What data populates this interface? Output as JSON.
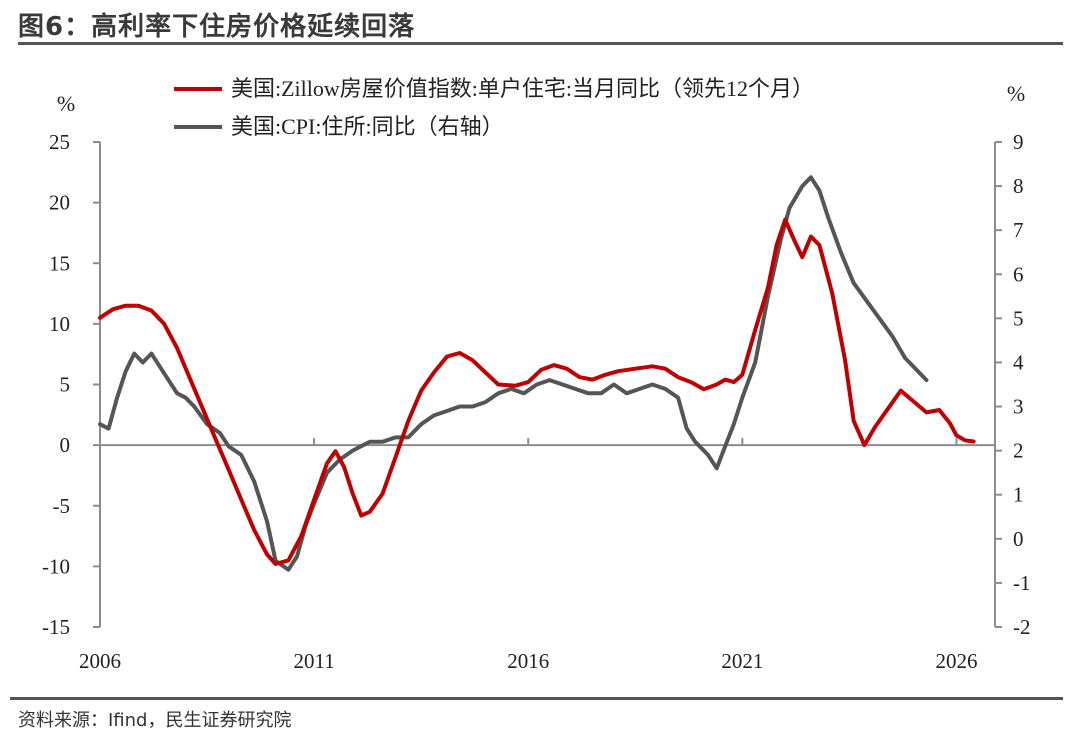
{
  "figure": {
    "title": "图6：高利率下住房价格延续回落",
    "source": "资料来源：Ifind，民生证券研究院"
  },
  "chart_data": {
    "type": "line",
    "left_unit": "%",
    "right_unit": "%",
    "x_ticks": [
      "2006",
      "2011",
      "2016",
      "2021",
      "2026"
    ],
    "xlim": [
      2006,
      2026.9
    ],
    "ylim_left": [
      -15,
      25
    ],
    "yticks_left": [
      25,
      20,
      15,
      10,
      5,
      0,
      -5,
      -10,
      -15
    ],
    "ylim_right": [
      -2,
      9
    ],
    "yticks_right": [
      9,
      8,
      7,
      6,
      5,
      4,
      3,
      2,
      1,
      0,
      -1,
      -2
    ],
    "legend_position": "top",
    "grid": false,
    "series": [
      {
        "name": "美国:Zillow房屋价值指数:单户住宅:当月同比（领先12个月）",
        "axis": "left",
        "color": "#c00000",
        "points": [
          [
            2006.0,
            10.5
          ],
          [
            2006.3,
            11.2
          ],
          [
            2006.6,
            11.5
          ],
          [
            2006.9,
            11.5
          ],
          [
            2007.2,
            11.1
          ],
          [
            2007.5,
            10.0
          ],
          [
            2007.8,
            8.0
          ],
          [
            2008.1,
            5.5
          ],
          [
            2008.4,
            3.0
          ],
          [
            2008.7,
            0.5
          ],
          [
            2009.0,
            -2.0
          ],
          [
            2009.3,
            -4.5
          ],
          [
            2009.6,
            -7.0
          ],
          [
            2009.9,
            -9.0
          ],
          [
            2010.1,
            -9.8
          ],
          [
            2010.4,
            -9.5
          ],
          [
            2010.7,
            -7.5
          ],
          [
            2011.0,
            -4.5
          ],
          [
            2011.3,
            -1.5
          ],
          [
            2011.5,
            -0.5
          ],
          [
            2011.7,
            -1.8
          ],
          [
            2011.9,
            -4.0
          ],
          [
            2012.1,
            -5.8
          ],
          [
            2012.3,
            -5.5
          ],
          [
            2012.6,
            -4.0
          ],
          [
            2012.9,
            -1.0
          ],
          [
            2013.2,
            2.0
          ],
          [
            2013.5,
            4.5
          ],
          [
            2013.8,
            6.0
          ],
          [
            2014.1,
            7.3
          ],
          [
            2014.4,
            7.6
          ],
          [
            2014.7,
            7.0
          ],
          [
            2015.0,
            6.0
          ],
          [
            2015.3,
            5.0
          ],
          [
            2015.7,
            4.9
          ],
          [
            2016.0,
            5.2
          ],
          [
            2016.3,
            6.2
          ],
          [
            2016.6,
            6.6
          ],
          [
            2016.9,
            6.3
          ],
          [
            2017.2,
            5.6
          ],
          [
            2017.5,
            5.4
          ],
          [
            2017.8,
            5.8
          ],
          [
            2018.1,
            6.1
          ],
          [
            2018.5,
            6.3
          ],
          [
            2018.9,
            6.5
          ],
          [
            2019.2,
            6.3
          ],
          [
            2019.5,
            5.6
          ],
          [
            2019.8,
            5.2
          ],
          [
            2020.1,
            4.6
          ],
          [
            2020.4,
            5.0
          ],
          [
            2020.6,
            5.4
          ],
          [
            2020.8,
            5.2
          ],
          [
            2021.0,
            5.8
          ],
          [
            2021.3,
            9.5
          ],
          [
            2021.6,
            13.0
          ],
          [
            2021.8,
            16.5
          ],
          [
            2022.0,
            18.6
          ],
          [
            2022.2,
            17.0
          ],
          [
            2022.4,
            15.5
          ],
          [
            2022.6,
            17.2
          ],
          [
            2022.8,
            16.5
          ],
          [
            2023.1,
            12.5
          ],
          [
            2023.4,
            7.0
          ],
          [
            2023.6,
            2.0
          ],
          [
            2023.85,
            0.0
          ],
          [
            2024.1,
            1.5
          ],
          [
            2024.4,
            3.0
          ],
          [
            2024.7,
            4.5
          ],
          [
            2025.0,
            3.6
          ],
          [
            2025.3,
            2.7
          ],
          [
            2025.6,
            2.9
          ],
          [
            2025.85,
            1.8
          ],
          [
            2026.0,
            0.8
          ],
          [
            2026.2,
            0.4
          ],
          [
            2026.4,
            0.3
          ]
        ]
      },
      {
        "name": "美国:CPI:住所:同比（右轴）",
        "axis": "right",
        "color": "#555555",
        "points": [
          [
            2006.0,
            2.6
          ],
          [
            2006.2,
            2.5
          ],
          [
            2006.4,
            3.2
          ],
          [
            2006.6,
            3.8
          ],
          [
            2006.8,
            4.2
          ],
          [
            2007.0,
            4.0
          ],
          [
            2007.2,
            4.2
          ],
          [
            2007.4,
            3.9
          ],
          [
            2007.6,
            3.6
          ],
          [
            2007.8,
            3.3
          ],
          [
            2008.0,
            3.2
          ],
          [
            2008.2,
            3.0
          ],
          [
            2008.5,
            2.6
          ],
          [
            2008.8,
            2.4
          ],
          [
            2009.0,
            2.1
          ],
          [
            2009.3,
            1.9
          ],
          [
            2009.6,
            1.3
          ],
          [
            2009.9,
            0.4
          ],
          [
            2010.1,
            -0.5
          ],
          [
            2010.4,
            -0.7
          ],
          [
            2010.6,
            -0.4
          ],
          [
            2010.8,
            0.3
          ],
          [
            2011.0,
            0.8
          ],
          [
            2011.3,
            1.5
          ],
          [
            2011.6,
            1.8
          ],
          [
            2011.9,
            2.0
          ],
          [
            2012.1,
            2.1
          ],
          [
            2012.3,
            2.2
          ],
          [
            2012.6,
            2.2
          ],
          [
            2012.9,
            2.3
          ],
          [
            2013.2,
            2.3
          ],
          [
            2013.5,
            2.6
          ],
          [
            2013.8,
            2.8
          ],
          [
            2014.1,
            2.9
          ],
          [
            2014.4,
            3.0
          ],
          [
            2014.7,
            3.0
          ],
          [
            2015.0,
            3.1
          ],
          [
            2015.3,
            3.3
          ],
          [
            2015.6,
            3.4
          ],
          [
            2015.9,
            3.3
          ],
          [
            2016.2,
            3.5
          ],
          [
            2016.5,
            3.6
          ],
          [
            2016.8,
            3.5
          ],
          [
            2017.1,
            3.4
          ],
          [
            2017.4,
            3.3
          ],
          [
            2017.7,
            3.3
          ],
          [
            2018.0,
            3.5
          ],
          [
            2018.3,
            3.3
          ],
          [
            2018.6,
            3.4
          ],
          [
            2018.9,
            3.5
          ],
          [
            2019.2,
            3.4
          ],
          [
            2019.5,
            3.2
          ],
          [
            2019.7,
            2.5
          ],
          [
            2019.9,
            2.2
          ],
          [
            2020.2,
            1.9
          ],
          [
            2020.4,
            1.6
          ],
          [
            2020.6,
            2.1
          ],
          [
            2020.8,
            2.6
          ],
          [
            2021.0,
            3.2
          ],
          [
            2021.3,
            4.0
          ],
          [
            2021.6,
            5.5
          ],
          [
            2021.9,
            6.8
          ],
          [
            2022.1,
            7.5
          ],
          [
            2022.4,
            8.0
          ],
          [
            2022.6,
            8.2
          ],
          [
            2022.8,
            7.9
          ],
          [
            2023.0,
            7.3
          ],
          [
            2023.3,
            6.5
          ],
          [
            2023.6,
            5.8
          ],
          [
            2023.9,
            5.4
          ],
          [
            2024.2,
            5.0
          ],
          [
            2024.5,
            4.6
          ],
          [
            2024.8,
            4.1
          ],
          [
            2025.1,
            3.8
          ],
          [
            2025.3,
            3.6
          ]
        ]
      }
    ]
  }
}
